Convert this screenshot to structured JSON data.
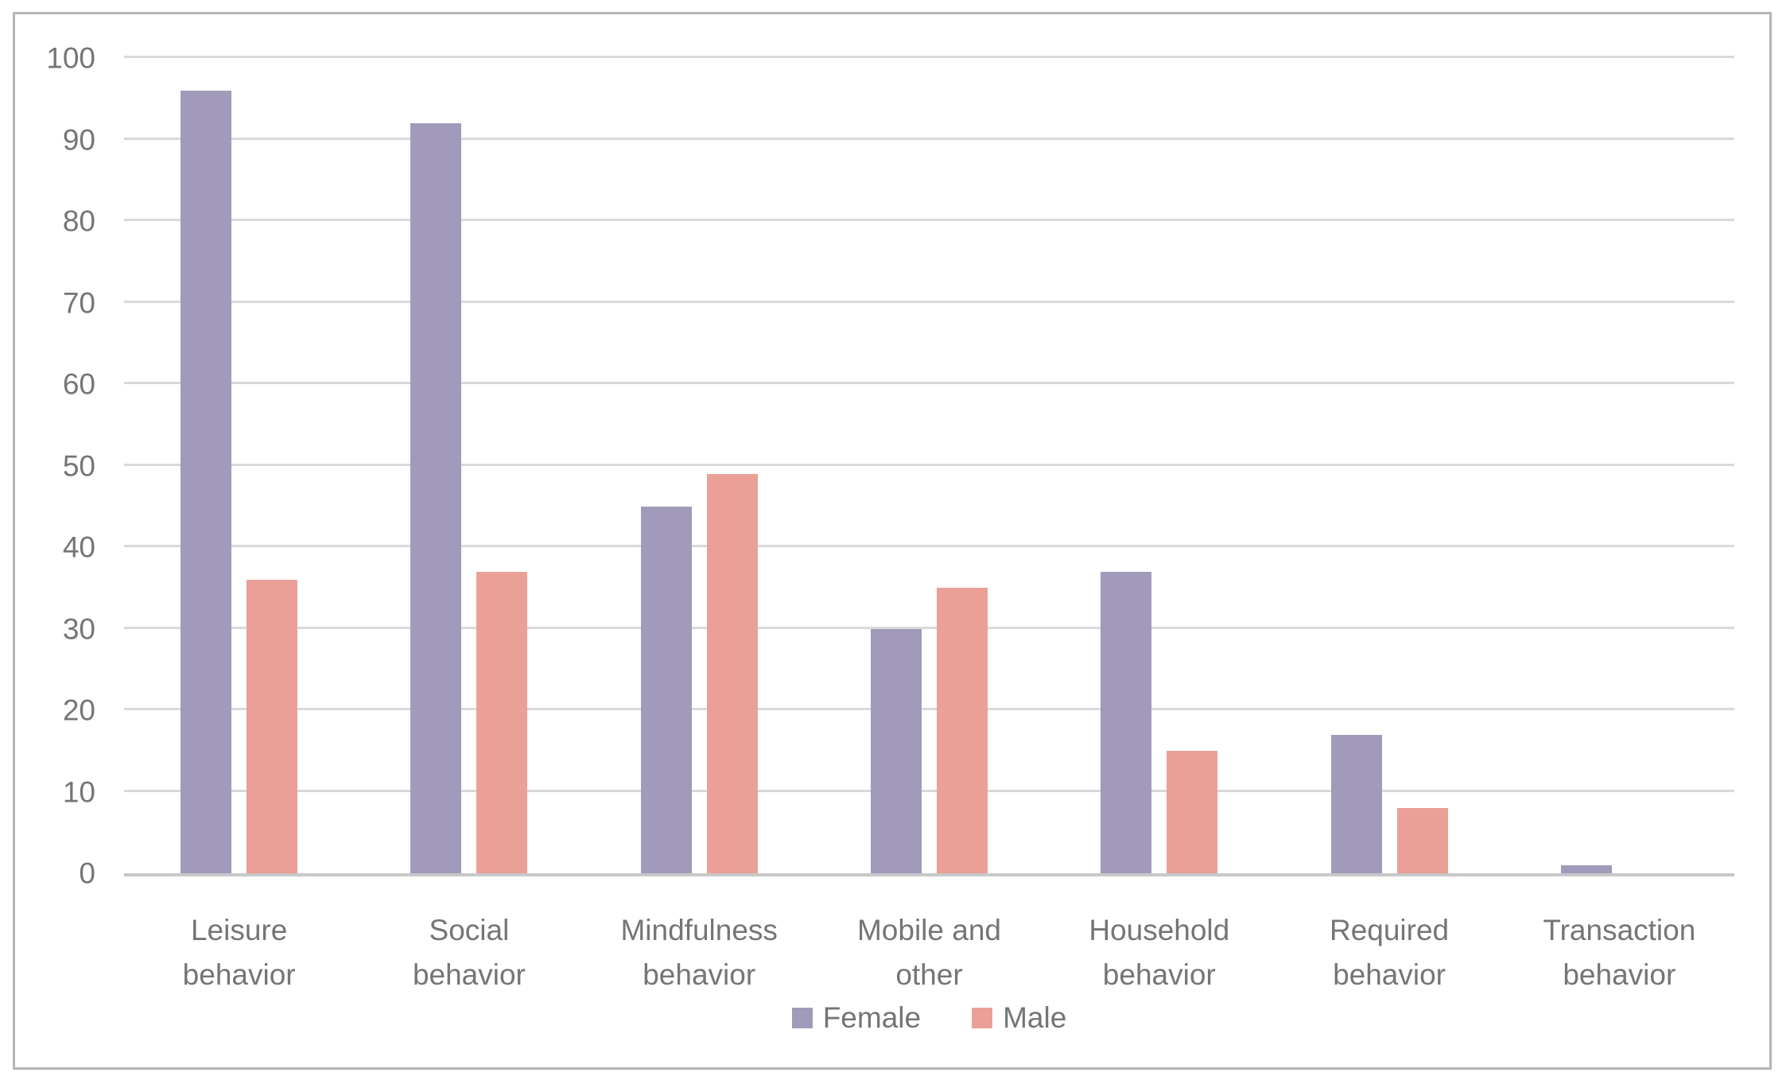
{
  "chart_data": {
    "type": "bar",
    "title": "",
    "xlabel": "",
    "ylabel": "",
    "categories": [
      "Leisure behavior",
      "Social behavior",
      "Mindfulness behavior",
      "Mobile and other",
      "Household behavior",
      "Required behavior",
      "Transaction behavior"
    ],
    "series": [
      {
        "name": "Female",
        "color": "#a19aba",
        "values": [
          96,
          92,
          45,
          30,
          37,
          17,
          1
        ]
      },
      {
        "name": "Male",
        "color": "#eaa096",
        "values": [
          36,
          37,
          49,
          35,
          15,
          8,
          0
        ]
      }
    ],
    "ylim": [
      0,
      100
    ],
    "yticks": [
      0,
      10,
      20,
      30,
      40,
      50,
      60,
      70,
      80,
      90,
      100
    ],
    "grid": true,
    "legend_position": "bottom"
  },
  "style_colors": {
    "gridline": "#d9d9d9",
    "axis_line": "#c8c8c8",
    "frame_border": "#b5b5b5",
    "text": "#757575",
    "background": "#ffffff"
  }
}
